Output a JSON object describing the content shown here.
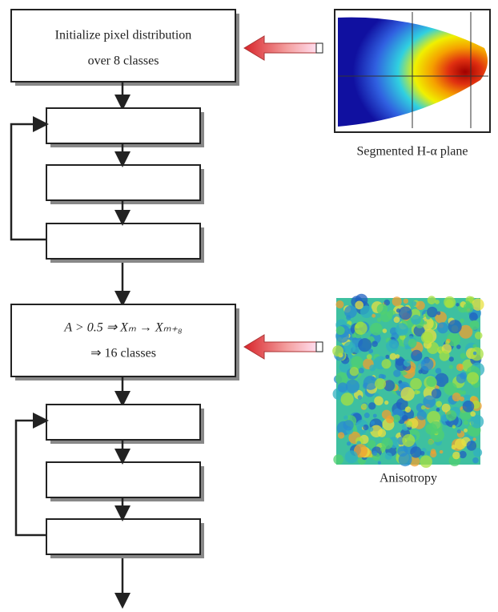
{
  "boxes": [
    {
      "lines": [
        "Initialize pixel distribution",
        "over 8 classes"
      ]
    },
    {
      "lines": [
        "A > 0.5 ⇒ Xₘ → Xₘ₊₈",
        "⇒ 16 classes"
      ]
    }
  ],
  "images": [
    {
      "caption": "Segmented H-α plane"
    },
    {
      "caption": "Anisotropy"
    }
  ]
}
